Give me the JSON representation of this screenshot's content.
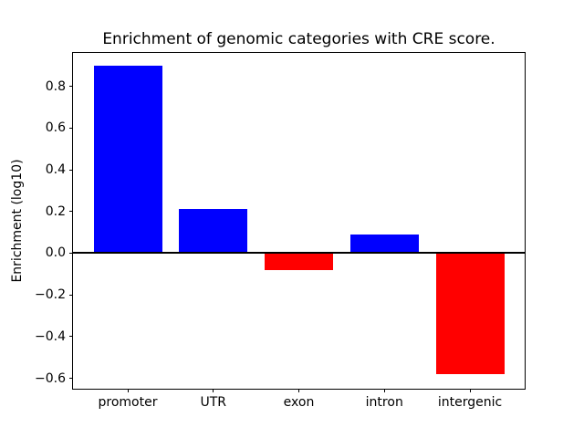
{
  "chart_data": {
    "type": "bar",
    "title": "Enrichment of genomic categories with CRE score.",
    "xlabel": "",
    "ylabel": "Enrichment (log10)",
    "categories": [
      "promoter",
      "UTR",
      "exon",
      "intron",
      "intergenic"
    ],
    "values": [
      0.9,
      0.21,
      -0.08,
      0.09,
      -0.58
    ],
    "bar_colors": [
      "#0000ff",
      "#0000ff",
      "#ff0000",
      "#0000ff",
      "#ff0000"
    ],
    "positive_color": "#0000ff",
    "negative_color": "#ff0000",
    "bar_width": 0.8,
    "ylim": [
      -0.65,
      0.96
    ],
    "xlim": [
      -0.64,
      4.64
    ],
    "yticks": [
      0.8,
      0.6,
      0.4,
      0.2,
      0.0,
      -0.2,
      -0.4,
      -0.6
    ],
    "zero_line": true,
    "grid": false,
    "legend": null,
    "axis_color": "#000000",
    "text_color": "#000000",
    "background_color": "#ffffff"
  }
}
